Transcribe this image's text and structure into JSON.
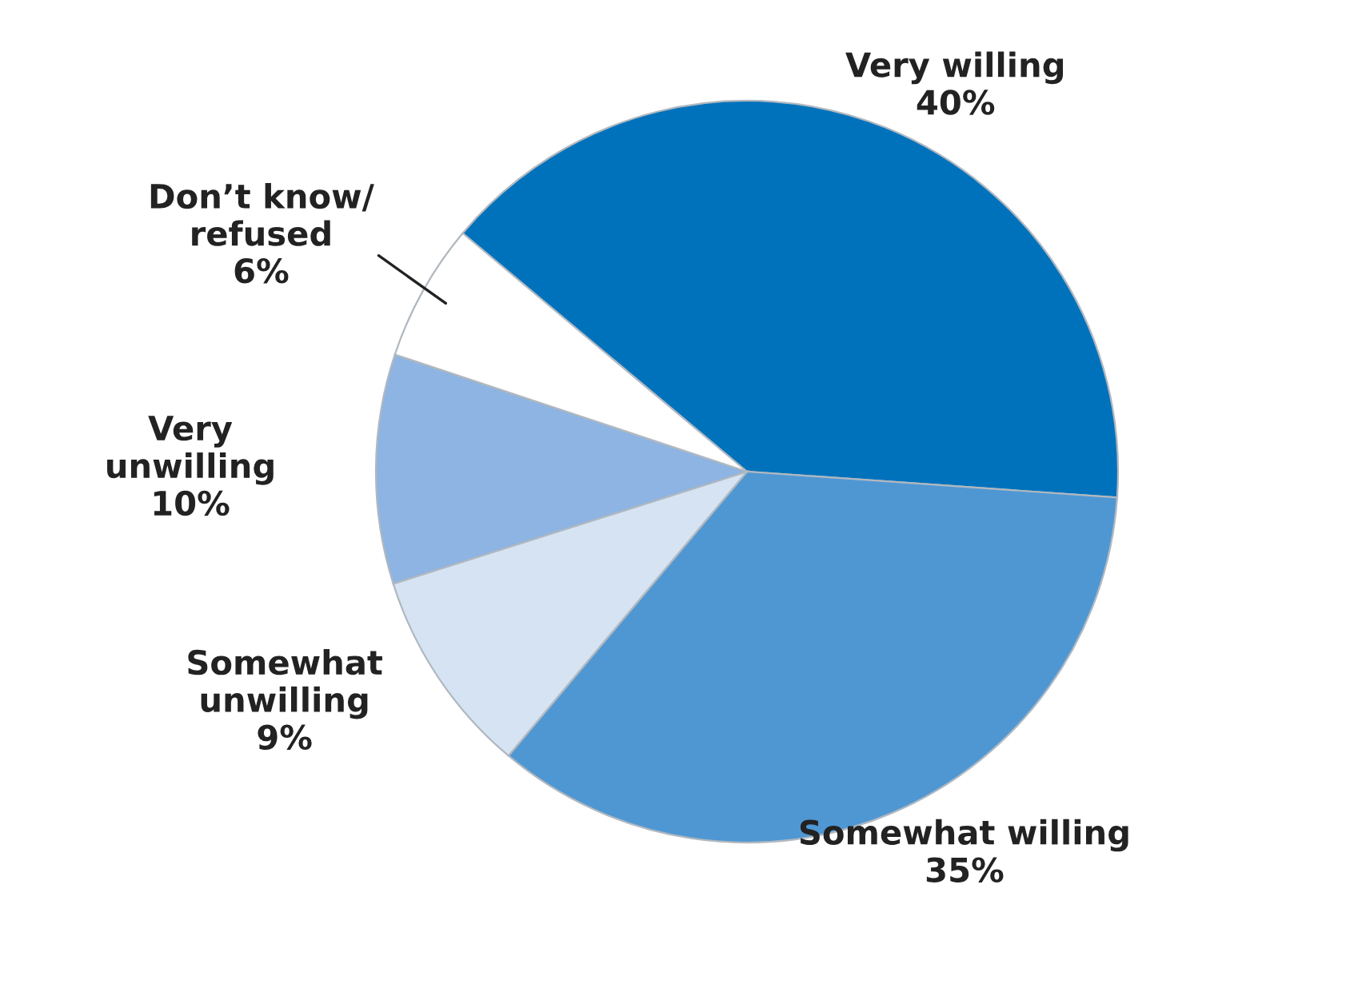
{
  "chart_data": {
    "type": "pie",
    "categories": [
      "Very willing",
      "Somewhat willing",
      "Somewhat\nunwilling",
      "Very\nunwilling",
      "Don’t know/\nrefused"
    ],
    "values": [
      40,
      35,
      9,
      10,
      6
    ],
    "colors": [
      "#0072bc",
      "#4f97d3",
      "#d5e3f3",
      "#8db4e2",
      "#ffffff"
    ],
    "value_labels": [
      "40%",
      "35%",
      "9%",
      "10%",
      "6%"
    ]
  }
}
